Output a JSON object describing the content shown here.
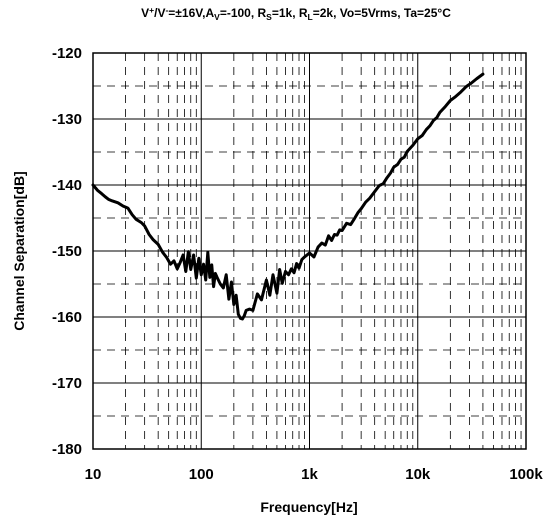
{
  "chart_data": {
    "type": "line",
    "title": {
      "parts": [
        {
          "t": "V"
        },
        {
          "t": "+",
          "sup": true
        },
        {
          "t": "/V"
        },
        {
          "t": "-",
          "sup": true
        },
        {
          "t": "=±16V,A"
        },
        {
          "t": "V",
          "sub": true
        },
        {
          "t": "=-100, R"
        },
        {
          "t": "S",
          "sub": true
        },
        {
          "t": "=1k, R"
        },
        {
          "t": "L",
          "sub": true
        },
        {
          "t": "=2k, Vo=5Vrms, Ta=25°C"
        }
      ]
    },
    "xlabel": "Frequency[Hz]",
    "ylabel": "Channel Separation[dB]",
    "xscale": "log",
    "xlim": [
      10,
      100000
    ],
    "ylim": [
      -180,
      -120
    ],
    "xticks": [
      {
        "value": 10,
        "label": "10"
      },
      {
        "value": 100,
        "label": "100"
      },
      {
        "value": 1000,
        "label": "1k"
      },
      {
        "value": 10000,
        "label": "10k"
      },
      {
        "value": 100000,
        "label": "100k"
      }
    ],
    "yticks": [
      {
        "value": -120,
        "label": "-120"
      },
      {
        "value": -130,
        "label": "-130"
      },
      {
        "value": -140,
        "label": "-140"
      },
      {
        "value": -150,
        "label": "-150"
      },
      {
        "value": -160,
        "label": "-160"
      },
      {
        "value": -170,
        "label": "-170"
      },
      {
        "value": -180,
        "label": "-180"
      }
    ],
    "grid": {
      "major": "solid",
      "minor": "dashed"
    },
    "series": [
      {
        "color": "#000000",
        "x": [
          10,
          11,
          12,
          13,
          14,
          15,
          17,
          19,
          21,
          23,
          25,
          28,
          30,
          33,
          36,
          40,
          44,
          48,
          52,
          56,
          60,
          64,
          68,
          72,
          76,
          80,
          85,
          90,
          95,
          100,
          105,
          110,
          115,
          120,
          125,
          130,
          135,
          140,
          150,
          160,
          170,
          180,
          190,
          200,
          210,
          220,
          230,
          240,
          250,
          260,
          280,
          300,
          330,
          360,
          400,
          430,
          460,
          500,
          530,
          560,
          600,
          640,
          680,
          720,
          760,
          800,
          850,
          900,
          950,
          1000,
          1100,
          1200,
          1300,
          1400,
          1500,
          1600,
          1700,
          1800,
          1900,
          2000,
          2200,
          2400,
          2600,
          2800,
          3000,
          3300,
          3600,
          4000,
          4400,
          4800,
          5200,
          5600,
          6000,
          6500,
          7000,
          7500,
          8000,
          9000,
          10000,
          11000,
          12000,
          13000,
          14000,
          15000,
          16000,
          18000,
          20000,
          22000,
          25000,
          28000,
          31000,
          35000,
          40000
        ],
        "values": [
          -140.0,
          -140.8,
          -141.3,
          -141.8,
          -142.2,
          -142.4,
          -142.7,
          -143.2,
          -143.5,
          -144.5,
          -145.2,
          -145.7,
          -146.2,
          -147.5,
          -148.3,
          -149.0,
          -150.2,
          -151.0,
          -152.0,
          -151.5,
          -152.7,
          -151.7,
          -150.6,
          -153.1,
          -150.1,
          -152.8,
          -150.6,
          -154.1,
          -151.1,
          -153.6,
          -152.0,
          -154.4,
          -150.2,
          -154.0,
          -152.1,
          -155.4,
          -153.4,
          -154.0,
          -155.0,
          -155.6,
          -153.6,
          -157.3,
          -154.7,
          -158.1,
          -156.7,
          -159.6,
          -160.2,
          -160.3,
          -159.8,
          -159.0,
          -158.8,
          -159.0,
          -156.5,
          -157.4,
          -154.4,
          -156.7,
          -153.6,
          -156.4,
          -152.8,
          -154.9,
          -153.1,
          -153.6,
          -152.7,
          -153.3,
          -151.9,
          -152.6,
          -151.3,
          -150.9,
          -150.6,
          -150.3,
          -150.9,
          -149.4,
          -148.8,
          -149.1,
          -147.7,
          -148.4,
          -147.5,
          -147.6,
          -146.8,
          -146.9,
          -145.8,
          -146.0,
          -145.1,
          -144.2,
          -143.6,
          -142.6,
          -142.0,
          -141.0,
          -140.1,
          -139.8,
          -138.9,
          -138.2,
          -137.3,
          -136.9,
          -136.1,
          -135.8,
          -134.9,
          -134.0,
          -133.0,
          -132.5,
          -131.6,
          -131.0,
          -130.2,
          -129.8,
          -129.0,
          -128.1,
          -127.2,
          -126.7,
          -125.9,
          -125.1,
          -124.6,
          -123.9,
          -123.2
        ]
      }
    ]
  }
}
